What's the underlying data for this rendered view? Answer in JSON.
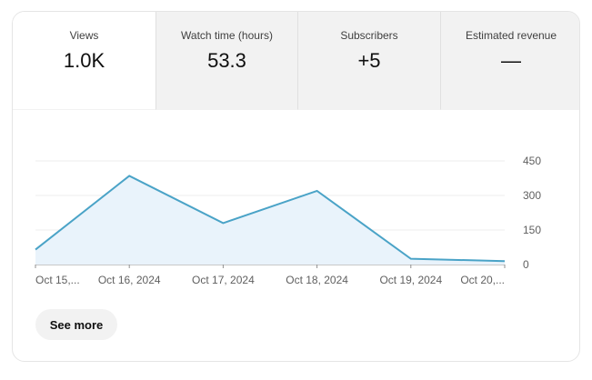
{
  "tabs": [
    {
      "label": "Views",
      "value": "1.0K",
      "active": true
    },
    {
      "label": "Watch time (hours)",
      "value": "53.3",
      "active": false
    },
    {
      "label": "Subscribers",
      "value": "+5",
      "active": false
    },
    {
      "label": "Estimated revenue",
      "value": "—",
      "active": false
    }
  ],
  "see_more_label": "See more",
  "colors": {
    "line": "#4aa3c7",
    "fill": "#e9f3fb",
    "grid": "#ececec",
    "axis": "#909090"
  },
  "chart_data": {
    "type": "area",
    "x": [
      "Oct 15,...",
      "Oct 16, 2024",
      "Oct 17, 2024",
      "Oct 18, 2024",
      "Oct 19, 2024",
      "Oct 20,..."
    ],
    "values": [
      65,
      385,
      180,
      320,
      25,
      15
    ],
    "y_ticks": [
      0,
      150,
      300,
      450
    ],
    "y_tick_labels": [
      "0",
      "150",
      "300",
      "450"
    ],
    "ylim": [
      0,
      450
    ],
    "grid": true,
    "y_axis_position": "right"
  }
}
